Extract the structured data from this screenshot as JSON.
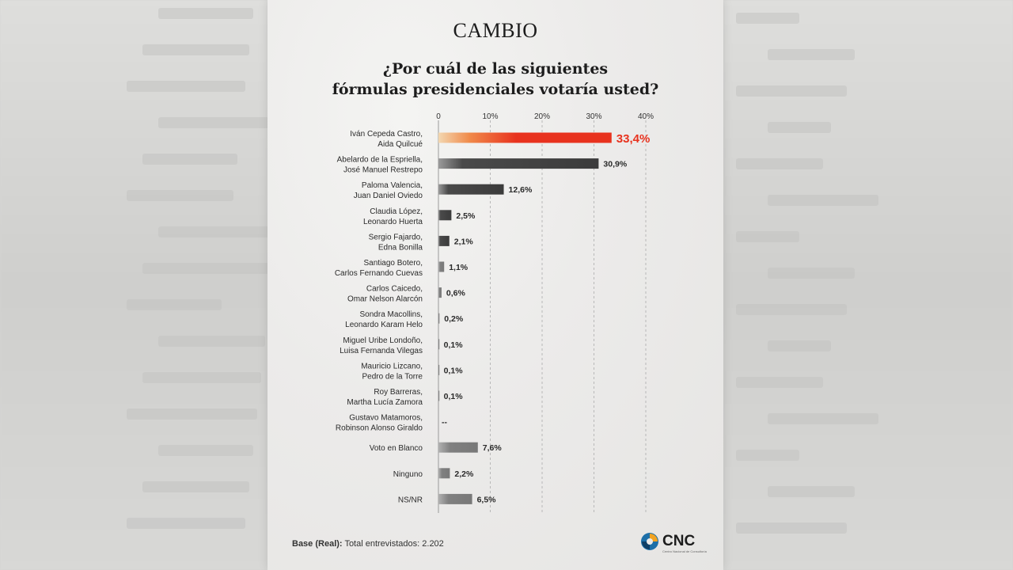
{
  "brand": "CAMBIO",
  "title_line1": "¿Por cuál de las siguientes",
  "title_line2": "fórmulas presidenciales votaría usted?",
  "footer": {
    "base_label": "Base (Real):",
    "base_text": "Total entrevistados: 2.202"
  },
  "logo": {
    "text": "CNC",
    "subtext": "Centro Nacional de Consultoría"
  },
  "colors": {
    "highlight": "#e8321e",
    "dark": "#3b3b3b",
    "light": "#7a7a7a"
  },
  "chart_data": {
    "type": "bar",
    "orientation": "horizontal",
    "xlim": [
      0,
      40
    ],
    "ticks": [
      "0",
      "10%",
      "20%",
      "30%",
      "40%"
    ],
    "tick_values": [
      0,
      10,
      20,
      30,
      40
    ],
    "grid": true,
    "rows": [
      {
        "label": [
          "Iván Cepeda Castro,",
          "Aida Quilcué"
        ],
        "value": 33.4,
        "text": "33,4%",
        "style": "highlight"
      },
      {
        "label": [
          "Abelardo de la Espriella,",
          "José Manuel Restrepo"
        ],
        "value": 30.9,
        "text": "30,9%",
        "style": "dark"
      },
      {
        "label": [
          "Paloma Valencia,",
          "Juan Daniel Oviedo"
        ],
        "value": 12.6,
        "text": "12,6%",
        "style": "dark"
      },
      {
        "label": [
          "Claudia López,",
          "Leonardo Huerta"
        ],
        "value": 2.5,
        "text": "2,5%",
        "style": "dark"
      },
      {
        "label": [
          "Sergio Fajardo,",
          "Edna Bonilla"
        ],
        "value": 2.1,
        "text": "2,1%",
        "style": "dark"
      },
      {
        "label": [
          "Santiago Botero,",
          "Carlos Fernando Cuevas"
        ],
        "value": 1.1,
        "text": "1,1%",
        "style": "light"
      },
      {
        "label": [
          "Carlos Caicedo,",
          "Omar Nelson Alarcón"
        ],
        "value": 0.6,
        "text": "0,6%",
        "style": "light"
      },
      {
        "label": [
          "Sondra Macollins,",
          "Leonardo Karam Helo"
        ],
        "value": 0.2,
        "text": "0,2%",
        "style": "light"
      },
      {
        "label": [
          "Miguel Uribe Londoño,",
          "Luisa Fernanda Vilegas"
        ],
        "value": 0.1,
        "text": "0,1%",
        "style": "light"
      },
      {
        "label": [
          "Mauricio Lizcano,",
          "Pedro de la Torre"
        ],
        "value": 0.1,
        "text": "0,1%",
        "style": "light"
      },
      {
        "label": [
          "Roy Barreras,",
          "Martha Lucía Zamora"
        ],
        "value": 0.1,
        "text": "0,1%",
        "style": "light"
      },
      {
        "label": [
          "Gustavo Matamoros,",
          "Robinson Alonso Giraldo"
        ],
        "value": 0,
        "text": "--",
        "style": "light"
      },
      {
        "label": [
          "Voto en Blanco"
        ],
        "value": 7.6,
        "text": "7,6%",
        "style": "light"
      },
      {
        "label": [
          "Ninguno"
        ],
        "value": 2.2,
        "text": "2,2%",
        "style": "light"
      },
      {
        "label": [
          "NS/NR"
        ],
        "value": 6.5,
        "text": "6,5%",
        "style": "light"
      }
    ]
  }
}
